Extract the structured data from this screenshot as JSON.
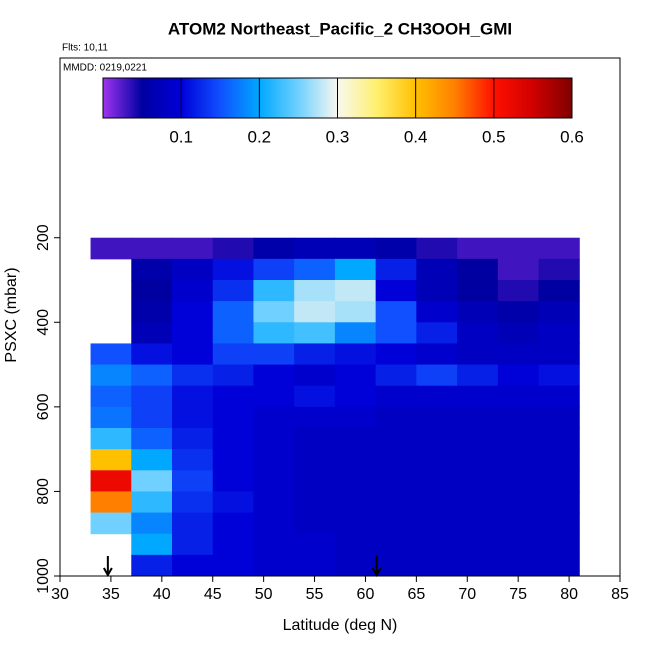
{
  "chart_data": {
    "type": "heatmap",
    "title": "ATOM2 Northeast_Pacific_2 CH3OOH_GMI",
    "annotations": [
      "Flts: 10,11",
      "MMDD: 0219,0221"
    ],
    "xlabel": "Latitude (deg N)",
    "ylabel": "PSXC (mbar)",
    "xlim": [
      30,
      85
    ],
    "xticks": [
      30,
      35,
      40,
      45,
      50,
      55,
      60,
      65,
      70,
      75,
      80,
      85
    ],
    "ylim": [
      1000,
      -225
    ],
    "yticks": [
      200,
      400,
      600,
      800,
      1000
    ],
    "x": [
      35,
      39,
      43,
      47,
      51,
      55,
      59,
      63,
      67,
      71,
      75,
      79
    ],
    "y": [
      225,
      275,
      325,
      375,
      425,
      475,
      525,
      575,
      625,
      675,
      725,
      775,
      825,
      875,
      925,
      975
    ],
    "z": [
      [
        0.03,
        0.03,
        0.03,
        0.04,
        0.06,
        0.07,
        0.07,
        0.06,
        0.04,
        0.03,
        0.03,
        0.03
      ],
      [
        null,
        0.06,
        0.08,
        0.11,
        0.14,
        0.16,
        0.2,
        0.12,
        0.07,
        0.05,
        0.03,
        0.04
      ],
      [
        null,
        0.05,
        0.09,
        0.13,
        0.22,
        0.27,
        0.28,
        0.1,
        0.07,
        0.05,
        0.04,
        0.05
      ],
      [
        null,
        0.06,
        0.1,
        0.16,
        0.25,
        0.28,
        0.27,
        0.15,
        0.09,
        0.07,
        0.06,
        0.07
      ],
      [
        null,
        0.07,
        0.1,
        0.16,
        0.22,
        0.23,
        0.18,
        0.15,
        0.12,
        0.08,
        0.07,
        0.08
      ],
      [
        0.15,
        0.11,
        0.1,
        0.14,
        0.14,
        0.12,
        0.11,
        0.1,
        0.09,
        0.08,
        0.08,
        0.08
      ],
      [
        0.18,
        0.16,
        0.13,
        0.12,
        0.1,
        0.09,
        0.1,
        0.12,
        0.14,
        0.12,
        0.1,
        0.11
      ],
      [
        0.16,
        0.14,
        0.11,
        0.1,
        0.1,
        0.11,
        0.1,
        0.09,
        0.09,
        0.09,
        0.09,
        0.09
      ],
      [
        0.17,
        0.14,
        0.11,
        0.1,
        0.09,
        0.09,
        0.09,
        0.08,
        0.08,
        0.08,
        0.08,
        0.08
      ],
      [
        0.22,
        0.16,
        0.12,
        0.1,
        0.09,
        0.08,
        0.08,
        0.08,
        0.08,
        0.08,
        0.08,
        0.08
      ],
      [
        0.4,
        0.2,
        0.13,
        0.1,
        0.09,
        0.08,
        0.08,
        0.08,
        0.08,
        0.08,
        0.08,
        0.08
      ],
      [
        0.52,
        0.25,
        0.14,
        0.1,
        0.09,
        0.08,
        0.08,
        0.08,
        0.08,
        0.08,
        0.08,
        0.08
      ],
      [
        0.45,
        0.22,
        0.13,
        0.11,
        0.09,
        0.08,
        0.08,
        0.08,
        0.08,
        0.08,
        0.08,
        0.08
      ],
      [
        0.25,
        0.18,
        0.12,
        0.1,
        0.09,
        0.08,
        0.08,
        0.08,
        0.08,
        0.08,
        0.08,
        0.08
      ],
      [
        null,
        0.2,
        0.12,
        0.1,
        0.09,
        0.09,
        0.08,
        0.08,
        0.08,
        0.08,
        0.08,
        0.08
      ],
      [
        null,
        0.12,
        0.1,
        0.1,
        0.09,
        0.09,
        0.08,
        0.08,
        0.08,
        0.08,
        0.08,
        0.08
      ]
    ],
    "colorbar_lim": [
      0,
      0.6
    ],
    "colorbar_ticks": [
      0.1,
      0.2,
      0.3,
      0.4,
      0.5,
      0.6
    ],
    "colormap": [
      "#a034f0",
      "#0000a0",
      "#0000d8",
      "#1050ff",
      "#00a8ff",
      "#70d0ff",
      "#f8f8f0",
      "#fff070",
      "#ffc000",
      "#ff8000",
      "#ff1000",
      "#d00000",
      "#800000"
    ],
    "markers_x": [
      34.7,
      61.1
    ]
  }
}
